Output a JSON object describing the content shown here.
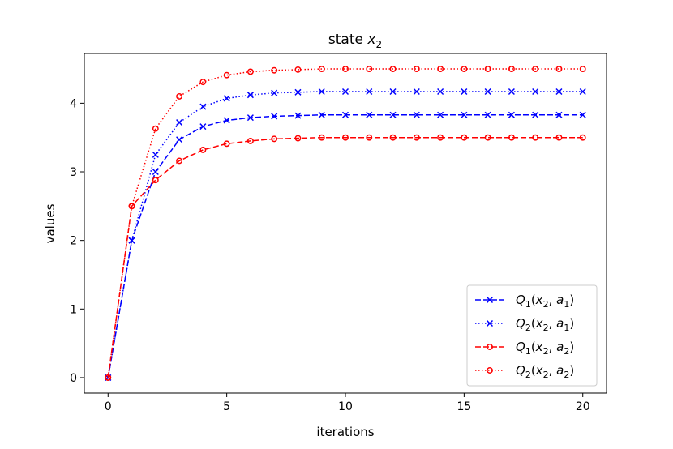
{
  "chart_data": {
    "type": "line",
    "title": "state x₂",
    "title_parts": {
      "main": "state ",
      "var": "x",
      "sub": "2"
    },
    "xlabel": "iterations",
    "ylabel": "values",
    "xlim": [
      -1,
      21
    ],
    "ylim": [
      -0.225,
      4.725
    ],
    "xticks": [
      0,
      5,
      10,
      15,
      20
    ],
    "yticks": [
      0,
      1,
      2,
      3,
      4
    ],
    "grid": false,
    "legend_position": "bottom-right",
    "x": [
      0,
      1,
      2,
      3,
      4,
      5,
      6,
      7,
      8,
      9,
      10,
      11,
      12,
      13,
      14,
      15,
      16,
      17,
      18,
      19,
      20
    ],
    "series": [
      {
        "name": "Q1(x2, a1)",
        "label": {
          "q": "Q",
          "qsub": "1",
          "x": "x",
          "xsub": "2",
          "a": "a",
          "asub": "1"
        },
        "color": "#0000ff",
        "linestyle": "dashed",
        "marker": "x",
        "values": [
          0,
          2.0,
          3.0,
          3.47,
          3.66,
          3.75,
          3.79,
          3.81,
          3.82,
          3.83,
          3.83,
          3.83,
          3.83,
          3.83,
          3.83,
          3.83,
          3.83,
          3.83,
          3.83,
          3.83,
          3.83
        ]
      },
      {
        "name": "Q2(x2, a1)",
        "label": {
          "q": "Q",
          "qsub": "2",
          "x": "x",
          "xsub": "2",
          "a": "a",
          "asub": "1"
        },
        "color": "#0000ff",
        "linestyle": "dotted",
        "marker": "x",
        "values": [
          0,
          2.0,
          3.25,
          3.72,
          3.95,
          4.07,
          4.12,
          4.15,
          4.16,
          4.17,
          4.17,
          4.17,
          4.17,
          4.17,
          4.17,
          4.17,
          4.17,
          4.17,
          4.17,
          4.17,
          4.17
        ]
      },
      {
        "name": "Q1(x2, a2)",
        "label": {
          "q": "Q",
          "qsub": "1",
          "x": "x",
          "xsub": "2",
          "a": "a",
          "asub": "2"
        },
        "color": "#ff0000",
        "linestyle": "dashed",
        "marker": "o",
        "values": [
          0,
          2.5,
          2.88,
          3.16,
          3.32,
          3.41,
          3.45,
          3.48,
          3.49,
          3.5,
          3.5,
          3.5,
          3.5,
          3.5,
          3.5,
          3.5,
          3.5,
          3.5,
          3.5,
          3.5,
          3.5
        ]
      },
      {
        "name": "Q2(x2, a2)",
        "label": {
          "q": "Q",
          "qsub": "2",
          "x": "x",
          "xsub": "2",
          "a": "a",
          "asub": "2"
        },
        "color": "#ff0000",
        "linestyle": "dotted",
        "marker": "o",
        "values": [
          0,
          2.5,
          3.63,
          4.1,
          4.31,
          4.41,
          4.46,
          4.48,
          4.49,
          4.5,
          4.5,
          4.5,
          4.5,
          4.5,
          4.5,
          4.5,
          4.5,
          4.5,
          4.5,
          4.5,
          4.5
        ]
      }
    ]
  }
}
